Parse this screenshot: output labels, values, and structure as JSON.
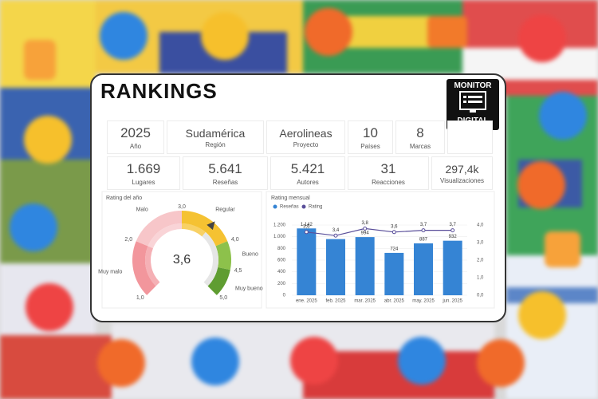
{
  "header": {
    "title": "RANKINGS",
    "logo": [
      "MONITOR",
      "DIGITAL"
    ]
  },
  "kpis": [
    [
      {
        "value": "2025",
        "label": "Año"
      },
      {
        "value": "Sudamérica",
        "label": "Región"
      },
      {
        "value": "Aerolineas",
        "label": "Proyecto"
      },
      {
        "value": "10",
        "label": "Países"
      },
      {
        "value": "8",
        "label": "Marcas"
      }
    ],
    [
      {
        "value": "1.669",
        "label": "Lugares"
      },
      {
        "value": "5.641",
        "label": "Reseñas"
      },
      {
        "value": "5.421",
        "label": "Autores"
      },
      {
        "value": "31",
        "label": "Reacciones"
      },
      {
        "value": "297,4k",
        "label": "Visualizaciones"
      }
    ]
  ],
  "chart_data": [
    {
      "type": "gauge",
      "title": "Rating del año",
      "value": 3.6,
      "value_label": "3,6",
      "ylim": [
        1,
        5
      ],
      "yticks": [
        {
          "value": 1,
          "label": "1,0"
        },
        {
          "value": 2,
          "label": "2,0"
        },
        {
          "value": 3,
          "label": "3,0"
        },
        {
          "value": 4,
          "label": "4,0"
        },
        {
          "value": 4.5,
          "label": "4,5"
        },
        {
          "value": 5,
          "label": "5,0"
        }
      ],
      "bands": [
        {
          "name": "Muy malo",
          "from": 1,
          "to": 2,
          "color": "#f2969c"
        },
        {
          "name": "Malo",
          "from": 2,
          "to": 3,
          "color": "#f7c6c9"
        },
        {
          "name": "Regular",
          "from": 3,
          "to": 4,
          "color": "#f5c232"
        },
        {
          "name": "Bueno",
          "from": 4,
          "to": 4.5,
          "color": "#8dc14b"
        },
        {
          "name": "Muy bueno",
          "from": 4.5,
          "to": 5,
          "color": "#5f9d31"
        }
      ]
    },
    {
      "type": "bar-line",
      "title": "Rating mensual",
      "categories": [
        "ene. 2025",
        "feb. 2025",
        "mar. 2025",
        "abr. 2025",
        "may. 2025",
        "jun. 2025"
      ],
      "series": [
        {
          "name": "Reseñas",
          "color": "#3584d4",
          "values": [
            1142,
            960,
            994,
            724,
            887,
            932
          ],
          "value_labels": [
            "1.142",
            null,
            "994",
            "724",
            "887",
            "932"
          ]
        },
        {
          "name": "Rating",
          "color": "#5a4f9a",
          "axis": "y2",
          "values": [
            3.6,
            3.4,
            3.8,
            3.6,
            3.7,
            3.7
          ],
          "value_labels": [
            "3,6",
            "3,4",
            "3,8",
            "3,6",
            "3,7",
            "3,7"
          ]
        }
      ],
      "ylim": [
        0,
        1200
      ],
      "yticks": [
        0,
        200,
        400,
        600,
        800,
        {
          "value": 1000,
          "label": "1.000"
        },
        {
          "value": 1200,
          "label": "1.200"
        }
      ],
      "y2lim": [
        0,
        4
      ],
      "y2ticks": [
        {
          "value": 0,
          "label": "0,0"
        },
        {
          "value": 1,
          "label": "1,0"
        },
        {
          "value": 2,
          "label": "2,0"
        },
        {
          "value": 3,
          "label": "3,0"
        },
        {
          "value": 4,
          "label": "4,0"
        }
      ]
    }
  ]
}
